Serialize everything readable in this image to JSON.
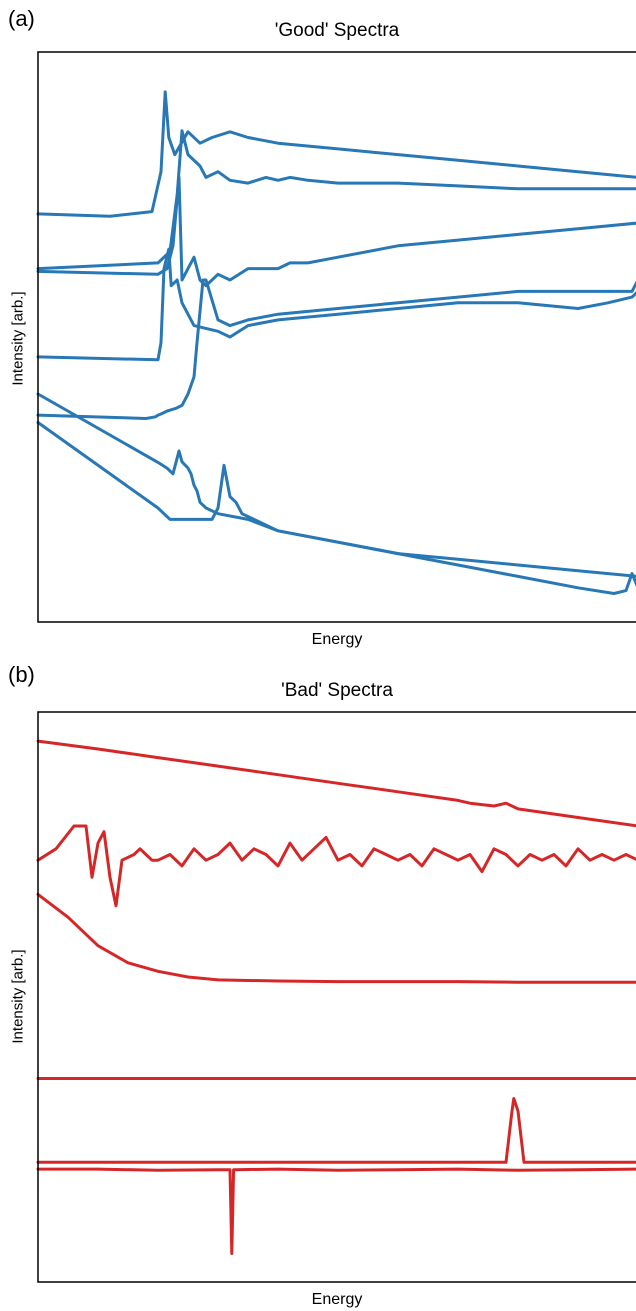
{
  "chart_data": [
    {
      "panel_label": "(a)",
      "type": "line",
      "title": "'Good' Spectra",
      "xlabel": "Energy",
      "ylabel": "Intensity [arb.]",
      "grid": false,
      "xlim": [
        0,
        1
      ],
      "ylim": [
        0,
        1
      ],
      "color": "#2878b5",
      "series": [
        {
          "x": [
            0,
            0.12,
            0.19,
            0.205,
            0.212,
            0.218,
            0.228,
            0.25,
            0.27,
            0.29,
            0.32,
            0.35,
            0.4,
            0.5,
            0.6,
            0.7,
            0.8,
            0.9,
            1
          ],
          "y": [
            0.716,
            0.712,
            0.72,
            0.79,
            0.93,
            0.85,
            0.82,
            0.86,
            0.84,
            0.85,
            0.86,
            0.85,
            0.84,
            0.83,
            0.82,
            0.81,
            0.8,
            0.79,
            0.78
          ]
        },
        {
          "x": [
            0,
            0.2,
            0.22,
            0.232,
            0.24,
            0.25,
            0.27,
            0.28,
            0.3,
            0.32,
            0.35,
            0.38,
            0.4,
            0.42,
            0.45,
            0.5,
            0.6,
            0.7,
            0.8,
            0.9,
            1
          ],
          "y": [
            0.62,
            0.63,
            0.65,
            0.75,
            0.862,
            0.82,
            0.8,
            0.78,
            0.79,
            0.775,
            0.77,
            0.78,
            0.775,
            0.78,
            0.775,
            0.77,
            0.77,
            0.765,
            0.76,
            0.76,
            0.76
          ]
        },
        {
          "x": [
            0,
            0.2,
            0.215,
            0.225,
            0.235,
            0.24,
            0.25,
            0.26,
            0.27,
            0.28,
            0.29,
            0.3,
            0.32,
            0.35,
            0.38,
            0.4,
            0.42,
            0.45,
            0.5,
            0.6,
            0.7,
            0.8,
            0.9,
            1
          ],
          "y": [
            0.615,
            0.61,
            0.62,
            0.66,
            0.78,
            0.6,
            0.62,
            0.64,
            0.6,
            0.59,
            0.6,
            0.61,
            0.6,
            0.62,
            0.62,
            0.62,
            0.63,
            0.63,
            0.64,
            0.66,
            0.67,
            0.68,
            0.69,
            0.7
          ]
        },
        {
          "x": [
            0,
            0.2,
            0.205,
            0.21,
            0.218,
            0.222,
            0.232,
            0.24,
            0.25,
            0.26,
            0.3,
            0.32,
            0.35,
            0.4,
            0.5,
            0.6,
            0.7,
            0.8,
            0.9,
            0.95,
            0.99,
            1
          ],
          "y": [
            0.465,
            0.46,
            0.49,
            0.62,
            0.654,
            0.59,
            0.6,
            0.56,
            0.54,
            0.52,
            0.51,
            0.5,
            0.52,
            0.53,
            0.54,
            0.55,
            0.56,
            0.56,
            0.55,
            0.56,
            0.57,
            0.58
          ]
        },
        {
          "x": [
            0,
            0.18,
            0.196,
            0.2,
            0.205,
            0.215,
            0.23,
            0.24,
            0.25,
            0.26,
            0.265,
            0.275,
            0.28,
            0.3,
            0.32,
            0.35,
            0.4,
            0.5,
            0.6,
            0.7,
            0.8,
            0.9,
            0.99,
            1
          ],
          "y": [
            0.363,
            0.357,
            0.36,
            0.363,
            0.365,
            0.37,
            0.375,
            0.38,
            0.4,
            0.43,
            0.49,
            0.6,
            0.6,
            0.53,
            0.52,
            0.53,
            0.54,
            0.55,
            0.56,
            0.57,
            0.58,
            0.58,
            0.58,
            0.6
          ]
        },
        {
          "x": [
            0,
            0.2,
            0.215,
            0.225,
            0.235,
            0.24,
            0.25,
            0.255,
            0.26,
            0.265,
            0.27,
            0.28,
            0.3,
            0.35,
            0.4,
            0.5,
            0.6,
            0.7,
            0.8,
            0.9,
            1
          ],
          "y": [
            0.4,
            0.28,
            0.27,
            0.26,
            0.3,
            0.281,
            0.27,
            0.26,
            0.24,
            0.23,
            0.21,
            0.2,
            0.19,
            0.18,
            0.16,
            0.14,
            0.12,
            0.11,
            0.1,
            0.09,
            0.08
          ]
        },
        {
          "x": [
            0,
            0.2,
            0.22,
            0.29,
            0.3,
            0.31,
            0.32,
            0.33,
            0.34,
            0.36,
            0.4,
            0.5,
            0.6,
            0.7,
            0.8,
            0.9,
            0.96,
            0.98,
            0.99,
            1
          ],
          "y": [
            0.35,
            0.2,
            0.18,
            0.18,
            0.2,
            0.275,
            0.22,
            0.21,
            0.19,
            0.18,
            0.16,
            0.14,
            0.12,
            0.1,
            0.08,
            0.06,
            0.05,
            0.055,
            0.085,
            0.06
          ]
        }
      ]
    },
    {
      "panel_label": "(b)",
      "type": "line",
      "title": "'Bad' Spectra",
      "xlabel": "Energy",
      "ylabel": "Intensity [arb.]",
      "grid": false,
      "xlim": [
        0,
        1
      ],
      "ylim": [
        0,
        1
      ],
      "color": "#d62728",
      "series": [
        {
          "x": [
            0,
            0.1,
            0.2,
            0.3,
            0.4,
            0.5,
            0.6,
            0.7,
            0.72,
            0.76,
            0.78,
            0.8,
            0.9,
            1
          ],
          "y": [
            0.949,
            0.935,
            0.92,
            0.905,
            0.89,
            0.875,
            0.86,
            0.845,
            0.84,
            0.835,
            0.84,
            0.83,
            0.815,
            0.8
          ]
        },
        {
          "x": [
            0,
            0.03,
            0.06,
            0.08,
            0.09,
            0.1,
            0.11,
            0.12,
            0.13,
            0.14,
            0.16,
            0.17,
            0.18,
            0.19,
            0.2,
            0.22,
            0.24,
            0.26,
            0.28,
            0.3,
            0.32,
            0.34,
            0.36,
            0.38,
            0.4,
            0.42,
            0.44,
            0.46,
            0.48,
            0.5,
            0.52,
            0.54,
            0.56,
            0.58,
            0.6,
            0.62,
            0.64,
            0.66,
            0.68,
            0.7,
            0.72,
            0.74,
            0.76,
            0.78,
            0.8,
            0.82,
            0.84,
            0.86,
            0.88,
            0.9,
            0.92,
            0.94,
            0.96,
            0.98,
            1
          ],
          "y": [
            0.74,
            0.76,
            0.8,
            0.8,
            0.71,
            0.77,
            0.79,
            0.71,
            0.66,
            0.74,
            0.75,
            0.76,
            0.75,
            0.74,
            0.74,
            0.75,
            0.73,
            0.76,
            0.74,
            0.75,
            0.77,
            0.74,
            0.76,
            0.75,
            0.73,
            0.77,
            0.74,
            0.76,
            0.78,
            0.74,
            0.75,
            0.73,
            0.76,
            0.75,
            0.74,
            0.75,
            0.73,
            0.76,
            0.75,
            0.74,
            0.75,
            0.72,
            0.76,
            0.75,
            0.73,
            0.75,
            0.74,
            0.75,
            0.73,
            0.76,
            0.74,
            0.75,
            0.74,
            0.75,
            0.74
          ]
        },
        {
          "x": [
            0,
            0.05,
            0.1,
            0.15,
            0.2,
            0.25,
            0.3,
            0.4,
            0.5,
            0.6,
            0.7,
            0.8,
            0.9,
            1
          ],
          "y": [
            0.68,
            0.64,
            0.59,
            0.56,
            0.545,
            0.535,
            0.53,
            0.528,
            0.527,
            0.527,
            0.527,
            0.526,
            0.526,
            0.526
          ]
        },
        {
          "x": [
            0,
            1
          ],
          "y": [
            0.357,
            0.357
          ]
        },
        {
          "x": [
            0,
            0.78,
            0.79,
            0.793,
            0.8,
            0.81,
            1
          ],
          "y": [
            0.21,
            0.21,
            0.3,
            0.322,
            0.3,
            0.21,
            0.21
          ]
        },
        {
          "x": [
            0,
            0.1,
            0.2,
            0.3,
            0.32,
            0.323,
            0.326,
            0.33,
            0.4,
            0.5,
            0.6,
            0.7,
            0.8,
            0.9,
            1
          ],
          "y": [
            0.198,
            0.198,
            0.196,
            0.197,
            0.197,
            0.05,
            0.197,
            0.197,
            0.198,
            0.196,
            0.197,
            0.198,
            0.196,
            0.197,
            0.198
          ]
        }
      ]
    }
  ]
}
